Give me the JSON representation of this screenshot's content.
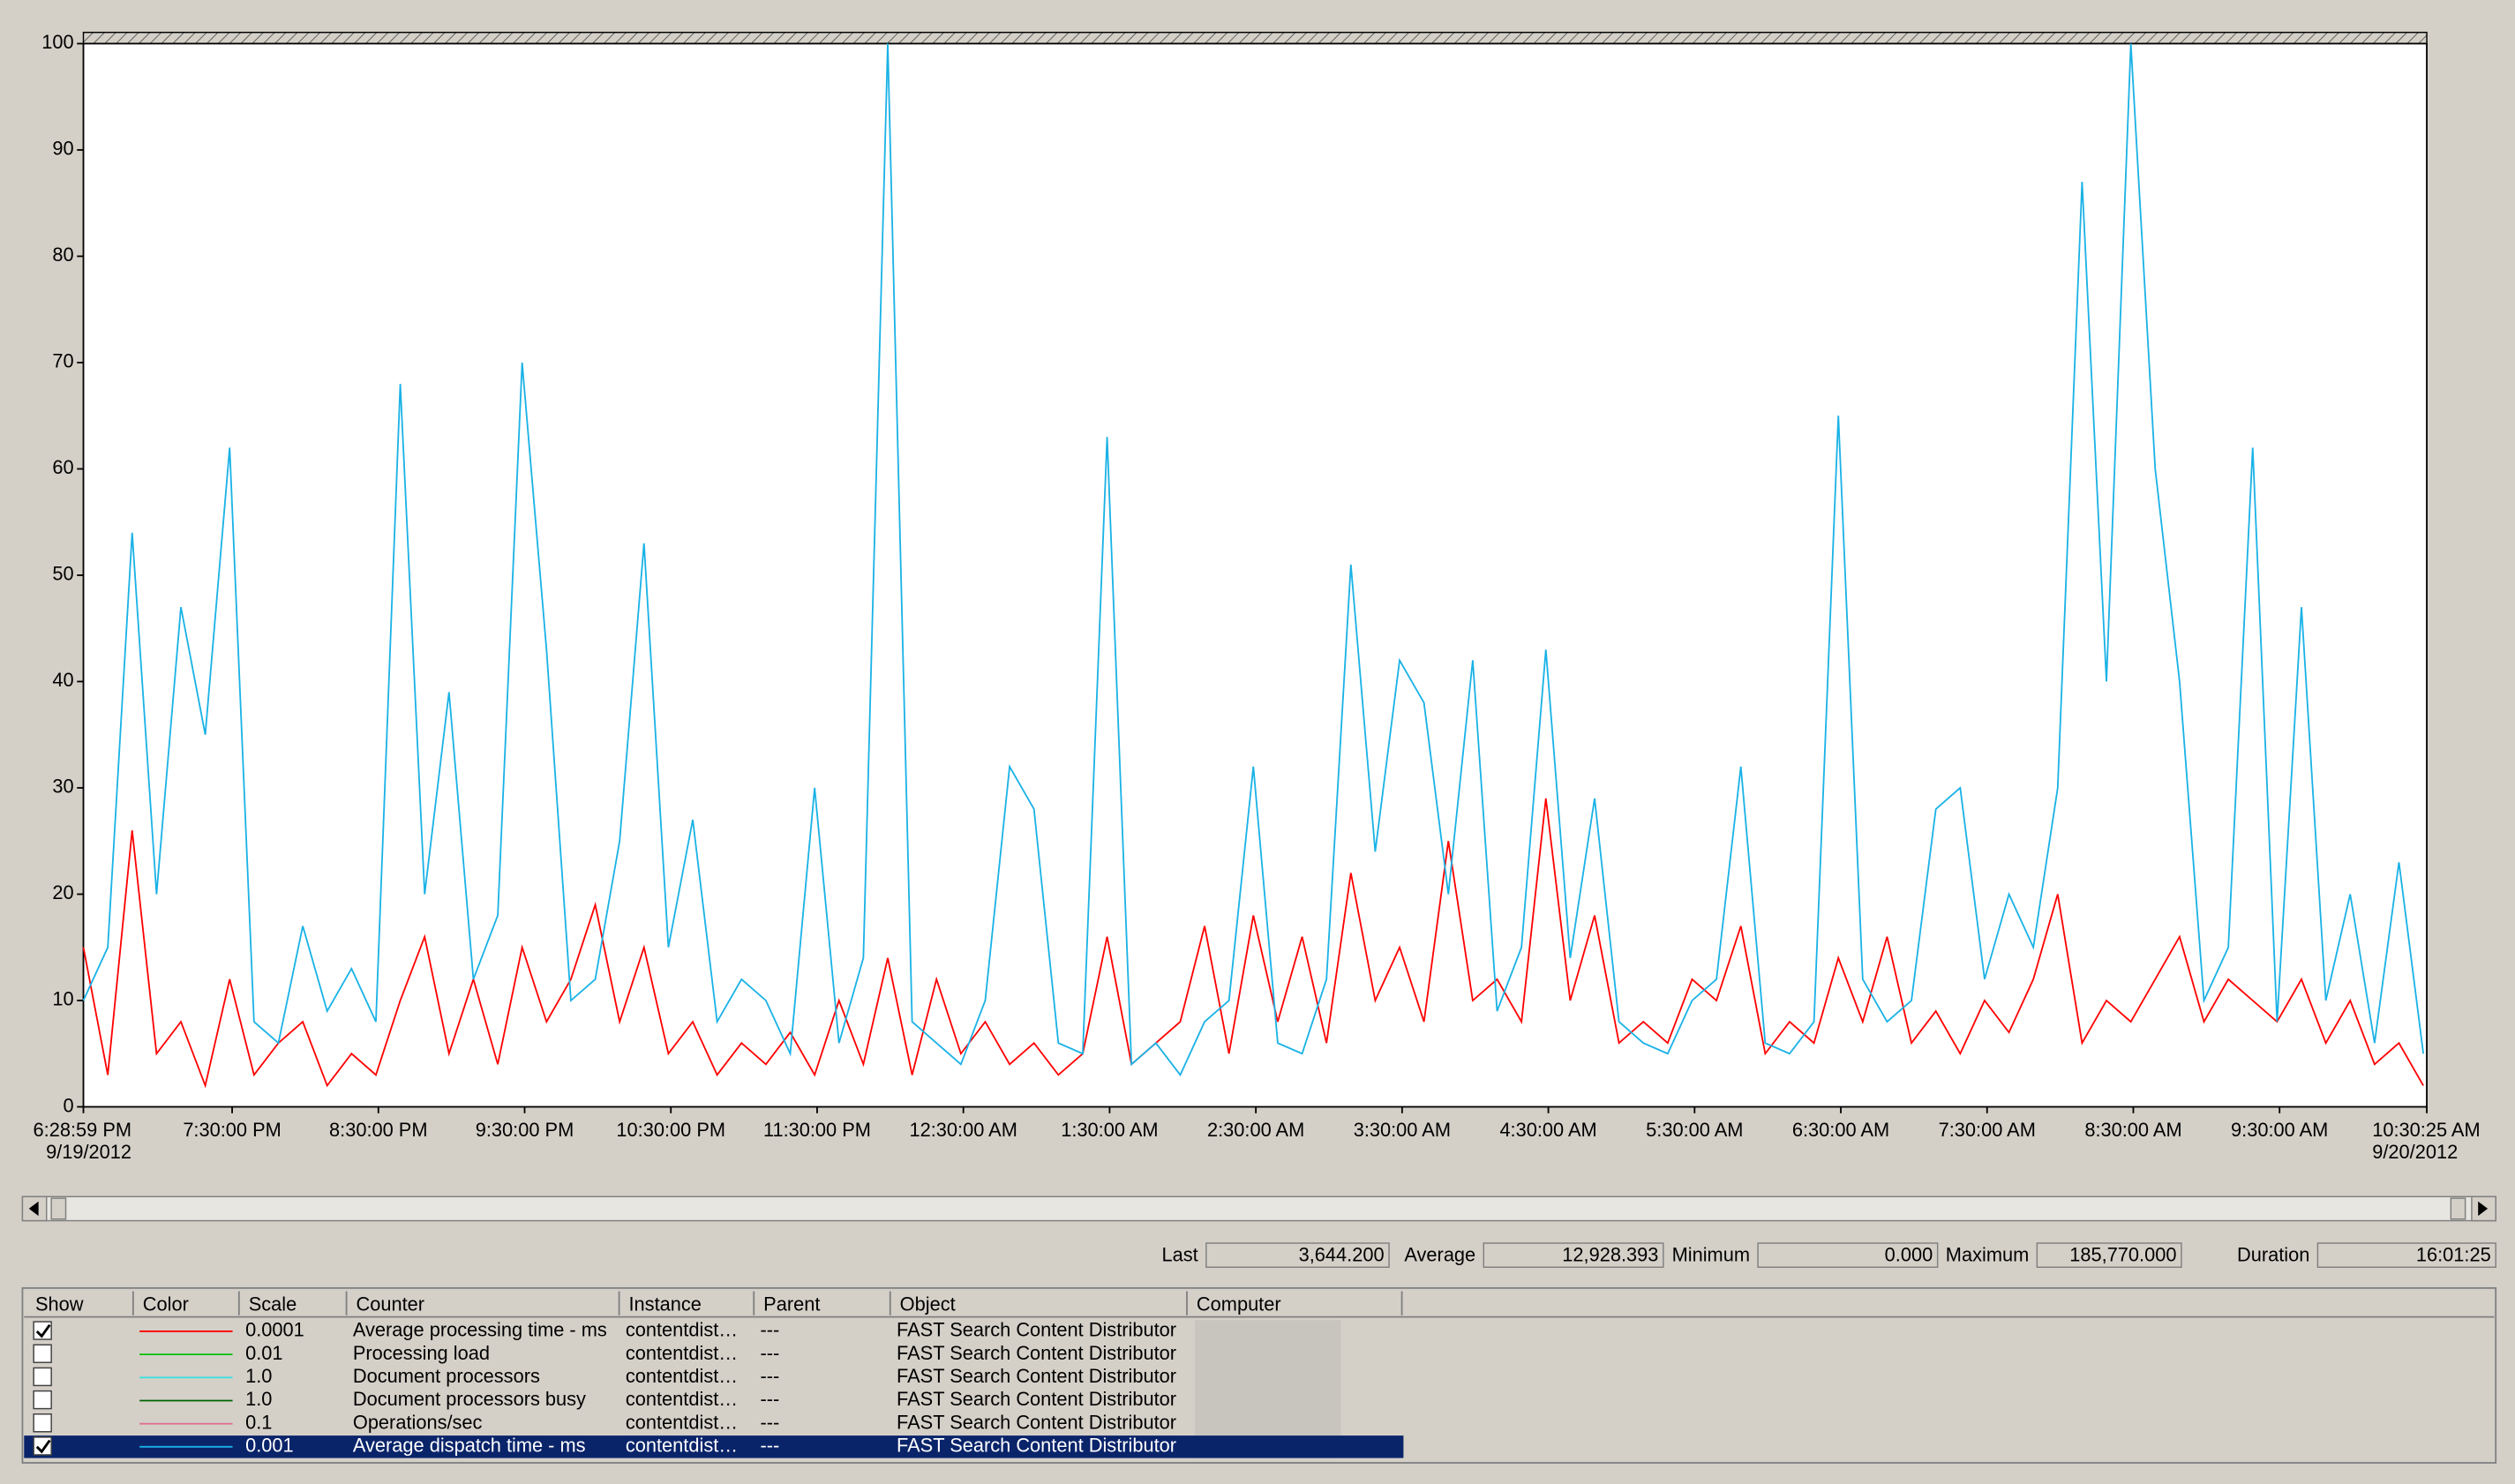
{
  "chart_data": {
    "type": "line",
    "xlim": [
      0,
      961.42
    ],
    "xticks": [
      {
        "value": 0,
        "label": "6:28:59 PM\n9/19/2012"
      },
      {
        "value": 61.02,
        "label": "7:30:00 PM"
      },
      {
        "value": 121.02,
        "label": "8:30:00 PM"
      },
      {
        "value": 181.02,
        "label": "9:30:00 PM"
      },
      {
        "value": 241.02,
        "label": "10:30:00 PM"
      },
      {
        "value": 301.02,
        "label": "11:30:00 PM"
      },
      {
        "value": 361.02,
        "label": "12:30:00 AM"
      },
      {
        "value": 421.02,
        "label": "1:30:00 AM"
      },
      {
        "value": 481.02,
        "label": "2:30:00 AM"
      },
      {
        "value": 541.02,
        "label": "3:30:00 AM"
      },
      {
        "value": 601.02,
        "label": "4:30:00 AM"
      },
      {
        "value": 661.02,
        "label": "5:30:00 AM"
      },
      {
        "value": 721.02,
        "label": "6:30:00 AM"
      },
      {
        "value": 781.02,
        "label": "7:30:00 AM"
      },
      {
        "value": 841.02,
        "label": "8:30:00 AM"
      },
      {
        "value": 901.02,
        "label": "9:30:00 AM"
      },
      {
        "value": 961.42,
        "label": "10:30:25 AM\n9/20/2012"
      }
    ],
    "ylim": [
      0,
      100
    ],
    "yticks": [
      0,
      10,
      20,
      30,
      40,
      50,
      60,
      70,
      80,
      90,
      100
    ],
    "x": [
      0,
      10,
      20,
      30,
      40,
      50,
      60,
      70,
      80,
      90,
      100,
      110,
      120,
      130,
      140,
      150,
      160,
      170,
      180,
      190,
      200,
      210,
      220,
      230,
      240,
      250,
      260,
      270,
      280,
      290,
      300,
      310,
      320,
      330,
      340,
      350,
      360,
      370,
      380,
      390,
      400,
      410,
      420,
      430,
      440,
      450,
      460,
      470,
      480,
      490,
      500,
      510,
      520,
      530,
      540,
      550,
      560,
      570,
      580,
      590,
      600,
      610,
      620,
      630,
      640,
      650,
      660,
      670,
      680,
      690,
      700,
      710,
      720,
      730,
      740,
      750,
      760,
      770,
      780,
      790,
      800,
      810,
      820,
      830,
      840,
      850,
      860,
      870,
      880,
      890,
      900,
      910,
      920,
      930,
      940,
      950,
      960
    ],
    "series": [
      {
        "color": "#ff0000",
        "values": [
          15,
          3,
          26,
          5,
          8,
          2,
          12,
          3,
          6,
          8,
          2,
          5,
          3,
          10,
          16,
          5,
          12,
          4,
          15,
          8,
          12,
          19,
          8,
          15,
          5,
          8,
          3,
          6,
          4,
          7,
          3,
          10,
          4,
          14,
          3,
          12,
          5,
          8,
          4,
          6,
          3,
          5,
          16,
          4,
          6,
          8,
          17,
          5,
          18,
          8,
          16,
          6,
          22,
          10,
          15,
          8,
          25,
          10,
          12,
          8,
          29,
          10,
          18,
          6,
          8,
          6,
          12,
          10,
          17,
          5,
          8,
          6,
          14,
          8,
          16,
          6,
          9,
          5,
          10,
          7,
          12,
          20,
          6,
          10,
          8,
          12,
          16,
          8,
          12,
          10,
          8,
          12,
          6,
          10,
          4,
          6,
          2
        ]
      },
      {
        "color": "#1ab2e6",
        "values": [
          10,
          15,
          54,
          20,
          47,
          35,
          62,
          8,
          6,
          17,
          9,
          13,
          8,
          68,
          20,
          39,
          12,
          18,
          70,
          43,
          10,
          12,
          25,
          53,
          15,
          27,
          8,
          12,
          10,
          5,
          30,
          6,
          14,
          100,
          8,
          6,
          4,
          10,
          32,
          28,
          6,
          5,
          63,
          4,
          6,
          3,
          8,
          10,
          32,
          6,
          5,
          12,
          51,
          24,
          42,
          38,
          20,
          42,
          9,
          15,
          43,
          14,
          29,
          8,
          6,
          5,
          10,
          12,
          32,
          6,
          5,
          8,
          65,
          12,
          8,
          10,
          28,
          30,
          12,
          20,
          15,
          30,
          87,
          40,
          100,
          60,
          40,
          10,
          15,
          62,
          8,
          47,
          10,
          20,
          6,
          23,
          5
        ]
      }
    ]
  },
  "stats": {
    "labels": [
      "Last",
      "Average",
      "Minimum",
      "Maximum",
      "Duration"
    ],
    "values": [
      "3,644.200",
      "12,928.393",
      "0.000",
      "185,770.000",
      "16:01:25"
    ]
  },
  "counters": {
    "columns": [
      "Show",
      "Color",
      "Scale",
      "Counter",
      "Instance",
      "Parent",
      "Object",
      "Computer"
    ],
    "rows": [
      {
        "show": true,
        "color": "#ff0000",
        "scale": "0.0001",
        "counter": "Average processing time - ms",
        "instance": "contentdist…",
        "parent": "---",
        "object": "FAST Search Content Distributor"
      },
      {
        "show": false,
        "color": "#00c000",
        "scale": "0.01",
        "counter": "Processing load",
        "instance": "contentdist…",
        "parent": "---",
        "object": "FAST Search Content Distributor"
      },
      {
        "show": false,
        "color": "#40e0e0",
        "scale": "1.0",
        "counter": "Document processors",
        "instance": "contentdist…",
        "parent": "---",
        "object": "FAST Search Content Distributor"
      },
      {
        "show": false,
        "color": "#006000",
        "scale": "1.0",
        "counter": "Document processors busy",
        "instance": "contentdist…",
        "parent": "---",
        "object": "FAST Search Content Distributor"
      },
      {
        "show": false,
        "color": "#e07090",
        "scale": "0.1",
        "counter": "Operations/sec",
        "instance": "contentdist…",
        "parent": "---",
        "object": "FAST Search Content Distributor"
      },
      {
        "show": true,
        "color": "#1ab2e6",
        "scale": "0.001",
        "counter": "Average dispatch time - ms",
        "instance": "contentdist…",
        "parent": "---",
        "object": "FAST Search Content Distributor",
        "selected": true
      }
    ]
  }
}
